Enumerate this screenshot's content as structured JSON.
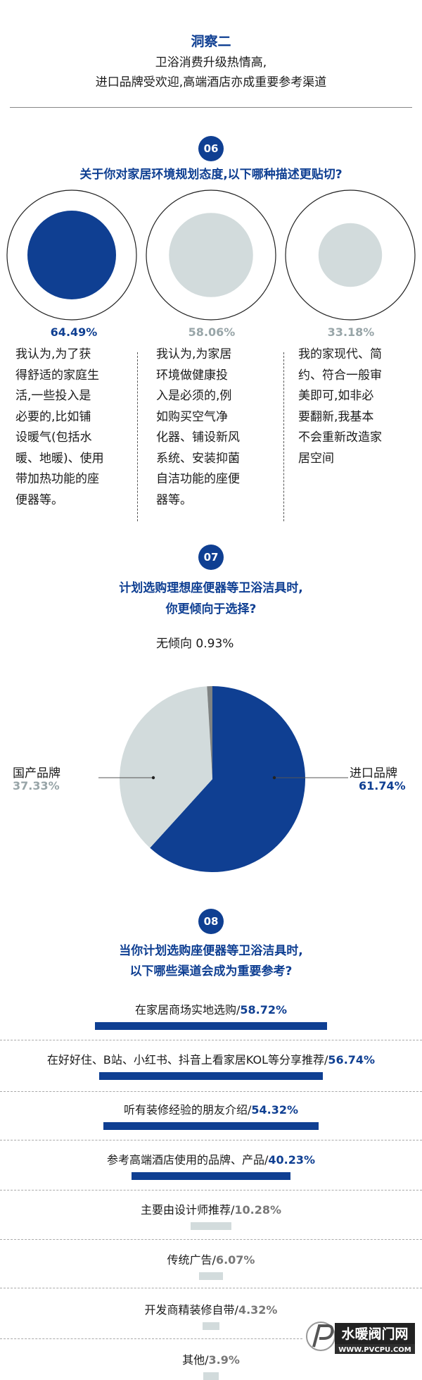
{
  "header": {
    "title": "洞察二",
    "subtitle_line1": "卫浴消费升级热情高,",
    "subtitle_line2": "进口品牌受欢迎,高端酒店亦成重要参考渠道"
  },
  "colors": {
    "primary": "#0f3f92",
    "secondary": "#d2dbdc",
    "tertiary": "#7f8383"
  },
  "q06": {
    "number": "06",
    "question": "关于你对家居环境规划态度,以下哪种描述更贴切?",
    "options": [
      {
        "value_label": "64.49%",
        "desc_lines": [
          "我认为,为了获",
          "得舒适的家庭生",
          "活,一些投入是",
          "必要的,比如铺",
          "设暖气(包括水",
          "暖、地暖)、使用",
          "带加热功能的座",
          "便器等。"
        ]
      },
      {
        "value_label": "58.06%",
        "desc_lines": [
          "我认为,为家居",
          "环境做健康投",
          "入是必须的,例",
          "如购买空气净",
          "化器、铺设新风",
          "系统、安装抑菌",
          "自洁功能的座便",
          "器等。"
        ]
      },
      {
        "value_label": "33.18%",
        "desc_lines": [
          "我的家现代、简",
          "约、符合一般审",
          "美即可,如非必",
          "要翻新,我基本",
          "不会重新改造家",
          "居空间"
        ]
      }
    ]
  },
  "q07": {
    "number": "07",
    "question_line1": "计划选购理想座便器等卫浴洁具时,",
    "question_line2": "你更倾向于选择?",
    "labels": {
      "none": "无倾向 0.93%",
      "domestic_name": "国产品牌",
      "domestic_value": "37.33%",
      "import_name": "进口品牌",
      "import_value": "61.74%"
    }
  },
  "q08": {
    "number": "08",
    "question_line1": "当你计划选购座便器等卫浴洁具时,",
    "question_line2": "以下哪些渠道会成为重要参考?",
    "items": [
      {
        "name": "在家居商场实地选购/",
        "value": "58.72%"
      },
      {
        "name": "在好好住、B站、小红书、抖音上看家居KOL等分享推荐/",
        "value": "56.74%"
      },
      {
        "name": "听有装修经验的朋友介绍/",
        "value": "54.32%"
      },
      {
        "name": "参考高端酒店使用的品牌、产品/",
        "value": "40.23%"
      },
      {
        "name": "主要由设计师推荐/",
        "value": "10.28%"
      },
      {
        "name": "传统广告/",
        "value": "6.07%"
      },
      {
        "name": "开发商精装修自带/",
        "value": "4.32%"
      },
      {
        "name": "其他/",
        "value": "3.9%"
      }
    ]
  },
  "chart_data": [
    {
      "type": "bar",
      "title": "关于你对家居环境规划态度,以下哪种描述更贴切?",
      "categories": [
        "我认为,为了获得舒适的家庭生活,一些投入是必要的,比如铺设暖气(包括水暖、地暖)、使用带加热功能的座便器等。",
        "我认为,为家居环境做健康投入是必须的,例如购买空气净化器、铺设新风系统、安装抑菌自洁功能的座便器等。",
        "我的家现代、简约、符合一般审美即可,如非必要翻新,我基本不会重新改造家居空间"
      ],
      "values": [
        64.49,
        58.06,
        33.18
      ],
      "ylim": [
        0,
        100
      ]
    },
    {
      "type": "pie",
      "title": "计划选购理想座便器等卫浴洁具时,你更倾向于选择?",
      "categories": [
        "进口品牌",
        "国产品牌",
        "无倾向"
      ],
      "values": [
        61.74,
        37.33,
        0.93
      ]
    },
    {
      "type": "bar",
      "title": "当你计划选购座便器等卫浴洁具时,以下哪些渠道会成为重要参考?",
      "categories": [
        "在家居商场实地选购",
        "在好好住、B站、小红书、抖音上看家居KOL等分享推荐",
        "听有装修经验的朋友介绍",
        "参考高端酒店使用的品牌、产品",
        "主要由设计师推荐",
        "传统广告",
        "开发商精装修自带",
        "其他"
      ],
      "values": [
        58.72,
        56.74,
        54.32,
        40.23,
        10.28,
        6.07,
        4.32,
        3.9
      ],
      "ylim": [
        0,
        100
      ]
    }
  ],
  "watermark": {
    "brand": "水暖阀门网",
    "url": "WWW.PVCPU.COM"
  }
}
